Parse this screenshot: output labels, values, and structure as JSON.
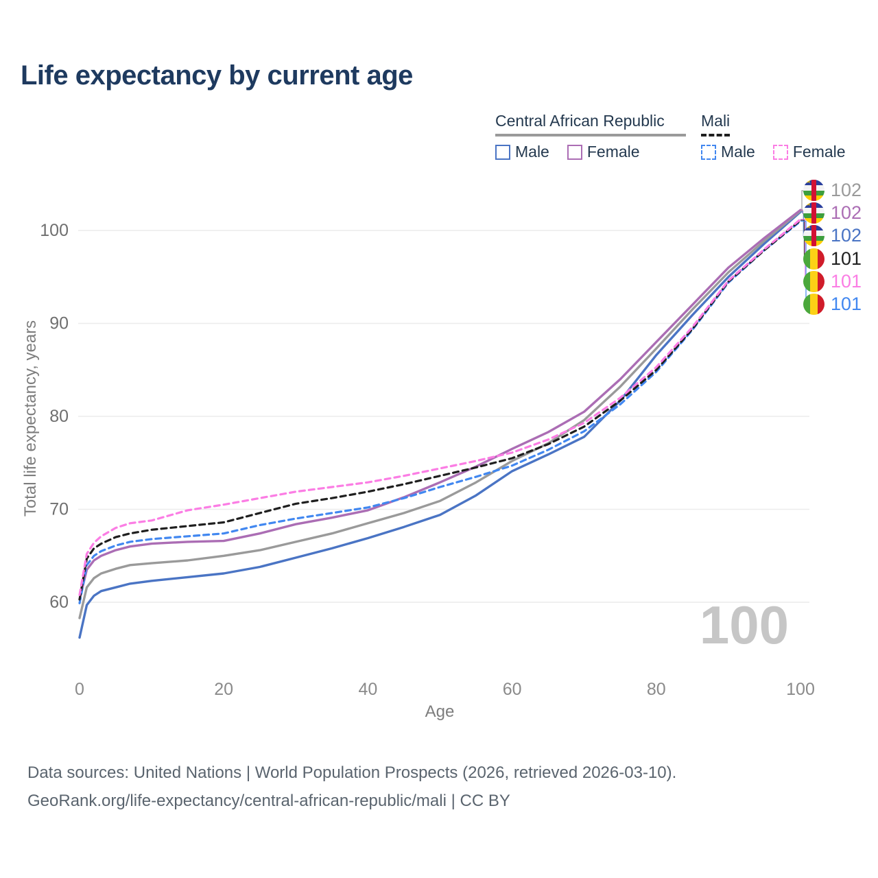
{
  "title": "Life expectancy by current age",
  "watermark_age": "100",
  "legend": {
    "groups": [
      {
        "label": "Central African Republic",
        "line_style": "solid",
        "line_color": "#9a9a9a",
        "items": [
          {
            "label": "Male",
            "color": "#4a74c4"
          },
          {
            "label": "Female",
            "color": "#ab6db4"
          }
        ]
      },
      {
        "label": "Mali",
        "line_style": "dashed",
        "line_color": "#1f1f1f",
        "items": [
          {
            "label": "Male",
            "color": "#4187f0"
          },
          {
            "label": "Female",
            "color": "#fb7de4"
          }
        ]
      }
    ]
  },
  "chart_data": {
    "type": "line",
    "title": "Life expectancy by current age",
    "xlabel": "Age",
    "ylabel": "Total life expectancy, years",
    "x_ticks": [
      0,
      20,
      40,
      60,
      80,
      100
    ],
    "y_ticks": [
      60,
      70,
      80,
      90,
      100
    ],
    "xlim": [
      0,
      100
    ],
    "ylim": [
      56,
      104
    ],
    "grid": "horizontal-only",
    "legend_position": "top-right",
    "x": [
      0,
      1,
      2,
      3,
      5,
      7,
      10,
      15,
      20,
      25,
      30,
      35,
      40,
      45,
      50,
      55,
      60,
      65,
      70,
      75,
      80,
      85,
      90,
      95,
      100
    ],
    "series": [
      {
        "name": "Central African Republic — Male",
        "country": "Central African Republic",
        "group": "Male",
        "color": "#4a74c4",
        "dash": "solid",
        "values": [
          56.2,
          59.7,
          60.7,
          61.2,
          61.6,
          62.0,
          62.3,
          62.7,
          63.1,
          63.8,
          64.8,
          65.8,
          66.9,
          68.1,
          69.4,
          71.5,
          74.1,
          75.9,
          77.8,
          81.7,
          86.6,
          90.9,
          95.0,
          98.6,
          102.0
        ]
      },
      {
        "name": "Central African Republic — Total",
        "country": "Central African Republic",
        "group": "Total",
        "color": "#9a9a9a",
        "dash": "solid",
        "values": [
          58.3,
          61.6,
          62.6,
          63.1,
          63.6,
          64.0,
          64.2,
          64.5,
          65.0,
          65.6,
          66.5,
          67.4,
          68.5,
          69.6,
          70.9,
          72.9,
          75.2,
          77.1,
          79.6,
          83.2,
          87.3,
          91.5,
          95.5,
          98.9,
          102.1
        ]
      },
      {
        "name": "Central African Republic — Female",
        "country": "Central African Republic",
        "group": "Female",
        "color": "#ab6db4",
        "dash": "solid",
        "values": [
          60.3,
          63.5,
          64.5,
          65.0,
          65.6,
          66.0,
          66.3,
          66.5,
          66.6,
          67.4,
          68.4,
          69.1,
          69.9,
          71.3,
          72.9,
          74.6,
          76.5,
          78.3,
          80.5,
          84.0,
          88.0,
          92.0,
          96.0,
          99.2,
          102.2
        ]
      },
      {
        "name": "Mali — Male",
        "country": "Mali",
        "group": "Male",
        "color": "#4187f0",
        "dash": "dashed",
        "values": [
          59.9,
          64.0,
          65.0,
          65.5,
          66.1,
          66.5,
          66.8,
          67.1,
          67.4,
          68.3,
          69.0,
          69.6,
          70.2,
          71.2,
          72.4,
          73.5,
          74.7,
          76.4,
          78.4,
          81.3,
          84.8,
          89.3,
          94.4,
          97.9,
          101.0
        ]
      },
      {
        "name": "Mali — Total",
        "country": "Mali",
        "group": "Total",
        "color": "#1f1f1f",
        "dash": "dashed",
        "values": [
          60.3,
          64.7,
          65.8,
          66.3,
          67.0,
          67.4,
          67.8,
          68.2,
          68.6,
          69.6,
          70.6,
          71.2,
          71.9,
          72.7,
          73.6,
          74.5,
          75.5,
          77.0,
          78.9,
          81.7,
          85.0,
          89.4,
          94.5,
          97.9,
          101.1
        ]
      },
      {
        "name": "Mali — Female",
        "country": "Mali",
        "group": "Female",
        "color": "#fb7de4",
        "dash": "dashed",
        "values": [
          60.8,
          65.2,
          66.4,
          67.1,
          68.0,
          68.5,
          68.8,
          69.9,
          70.5,
          71.2,
          71.9,
          72.4,
          72.9,
          73.6,
          74.4,
          75.2,
          76.1,
          77.5,
          79.3,
          82.0,
          85.3,
          89.6,
          94.6,
          98.0,
          101.2
        ]
      }
    ],
    "end_labels": [
      {
        "value": "102",
        "color": "#9a9a9a",
        "flag": "central-african-republic-flag-icon",
        "series": "Central African Republic — Total"
      },
      {
        "value": "102",
        "color": "#ab6db4",
        "flag": "central-african-republic-flag-icon",
        "series": "Central African Republic — Female"
      },
      {
        "value": "102",
        "color": "#4a74c4",
        "flag": "central-african-republic-flag-icon",
        "series": "Central African Republic — Male"
      },
      {
        "value": "101",
        "color": "#1f1f1f",
        "flag": "mali-flag-icon",
        "series": "Mali — Total"
      },
      {
        "value": "101",
        "color": "#fb7de4",
        "flag": "mali-flag-icon",
        "series": "Mali — Female"
      },
      {
        "value": "101",
        "color": "#4187f0",
        "flag": "mali-flag-icon",
        "series": "Mali — Male"
      }
    ]
  },
  "footer": {
    "line1": "Data sources: United Nations | World Population Prospects (2026, retrieved 2026-03-10).",
    "line2": "GeoRank.org/life-expectancy/central-african-republic/mali | CC BY"
  }
}
